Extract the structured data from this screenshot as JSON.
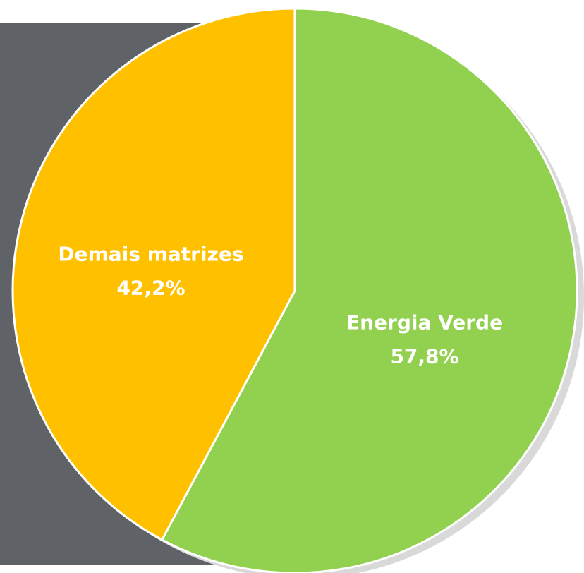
{
  "chart_data": {
    "type": "pie",
    "categories": [
      "Energia Verde",
      "Demais matrizes"
    ],
    "values": [
      57.8,
      42.2
    ],
    "value_labels": [
      "57,8%",
      "42,2%"
    ],
    "colors": [
      "#92d050",
      "#ffc000"
    ]
  }
}
